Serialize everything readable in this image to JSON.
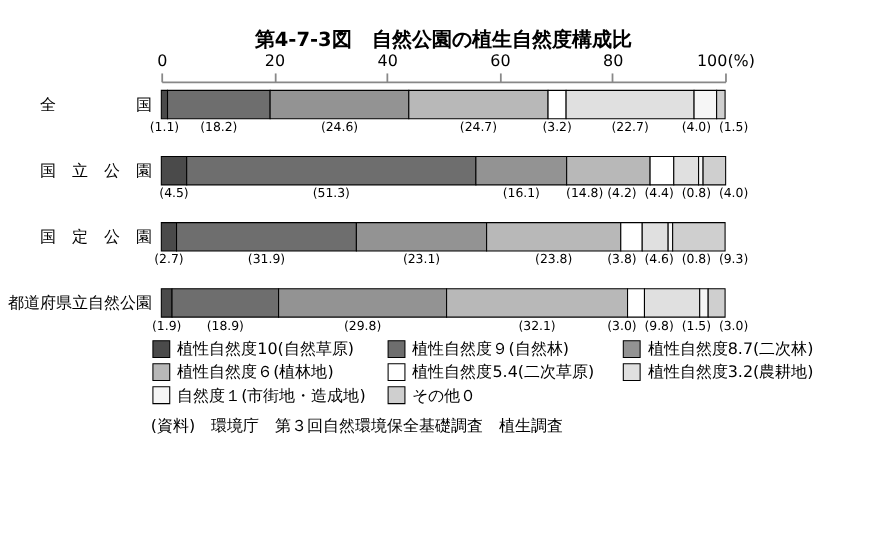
{
  "chart_data": {
    "type": "bar",
    "orientation": "horizontal",
    "stacked": true,
    "title": "第4-7-3図　自然公園の植生自然度構成比",
    "categories": [
      "全　　　　　国",
      "国　立　公　園",
      "国　定　公　園",
      "都道府県立自然公園"
    ],
    "series": [
      {
        "name": "植性自然度10(自然草原)",
        "color": "#4a4a4a",
        "values": [
          1.1,
          4.5,
          2.7,
          1.9
        ],
        "value_labels": [
          "(1.1)",
          "(4.5)",
          "(2.7)",
          "(1.9)"
        ]
      },
      {
        "name": "植性自然度９(自然林)",
        "color": "#6e6e6e",
        "values": [
          18.2,
          51.3,
          31.9,
          18.9
        ],
        "value_labels": [
          "(18.2)",
          "(51.3)",
          "(31.9)",
          "(18.9)"
        ]
      },
      {
        "name": "植性自然度8.7(二次林)",
        "color": "#939393",
        "values": [
          24.6,
          16.1,
          23.1,
          29.8
        ],
        "value_labels": [
          "(24.6)",
          "(16.1)",
          "(23.1)",
          "(29.8)"
        ]
      },
      {
        "name": "植性自然度６(植林地)",
        "color": "#b8b8b8",
        "values": [
          24.7,
          14.8,
          23.8,
          32.1
        ],
        "value_labels": [
          "(24.7)",
          "(14.8)",
          "(23.8)",
          "(32.1)"
        ]
      },
      {
        "name": "植性自然度5.4(二次草原)",
        "color": "#ffffff",
        "values": [
          3.2,
          4.2,
          3.8,
          3.0
        ],
        "value_labels": [
          "(3.2)",
          "(4.2)",
          "(3.8)",
          "(3.0)"
        ]
      },
      {
        "name": "植性自然度3.2(農耕地)",
        "color": "#e0e0e0",
        "values": [
          22.7,
          4.4,
          4.6,
          9.8
        ],
        "value_labels": [
          "(22.7)",
          "(4.4)",
          "(4.6)",
          "(9.8)"
        ]
      },
      {
        "name": "自然度１(市街地・造成地)",
        "color": "#f6f6f6",
        "values": [
          4.0,
          0.8,
          0.8,
          1.5
        ],
        "value_labels": [
          "(4.0)",
          "(0.8)",
          "(0.8)",
          "(1.5)"
        ]
      },
      {
        "name": "その他０",
        "color": "#cfcfcf",
        "values": [
          1.5,
          4.0,
          9.3,
          3.0
        ],
        "value_labels": [
          "(1.5)",
          "(4.0)",
          "(9.3)",
          "(3.0)"
        ]
      }
    ],
    "xlim": [
      0,
      100
    ],
    "xticks": [
      0,
      20,
      40,
      60,
      80,
      {
        "value": 100,
        "label": "100(%)"
      }
    ],
    "grid": false,
    "legend": "bottom",
    "annotations": [
      "(資料)　環境庁　第３回自然環境保全基礎調査　植生調査"
    ]
  }
}
